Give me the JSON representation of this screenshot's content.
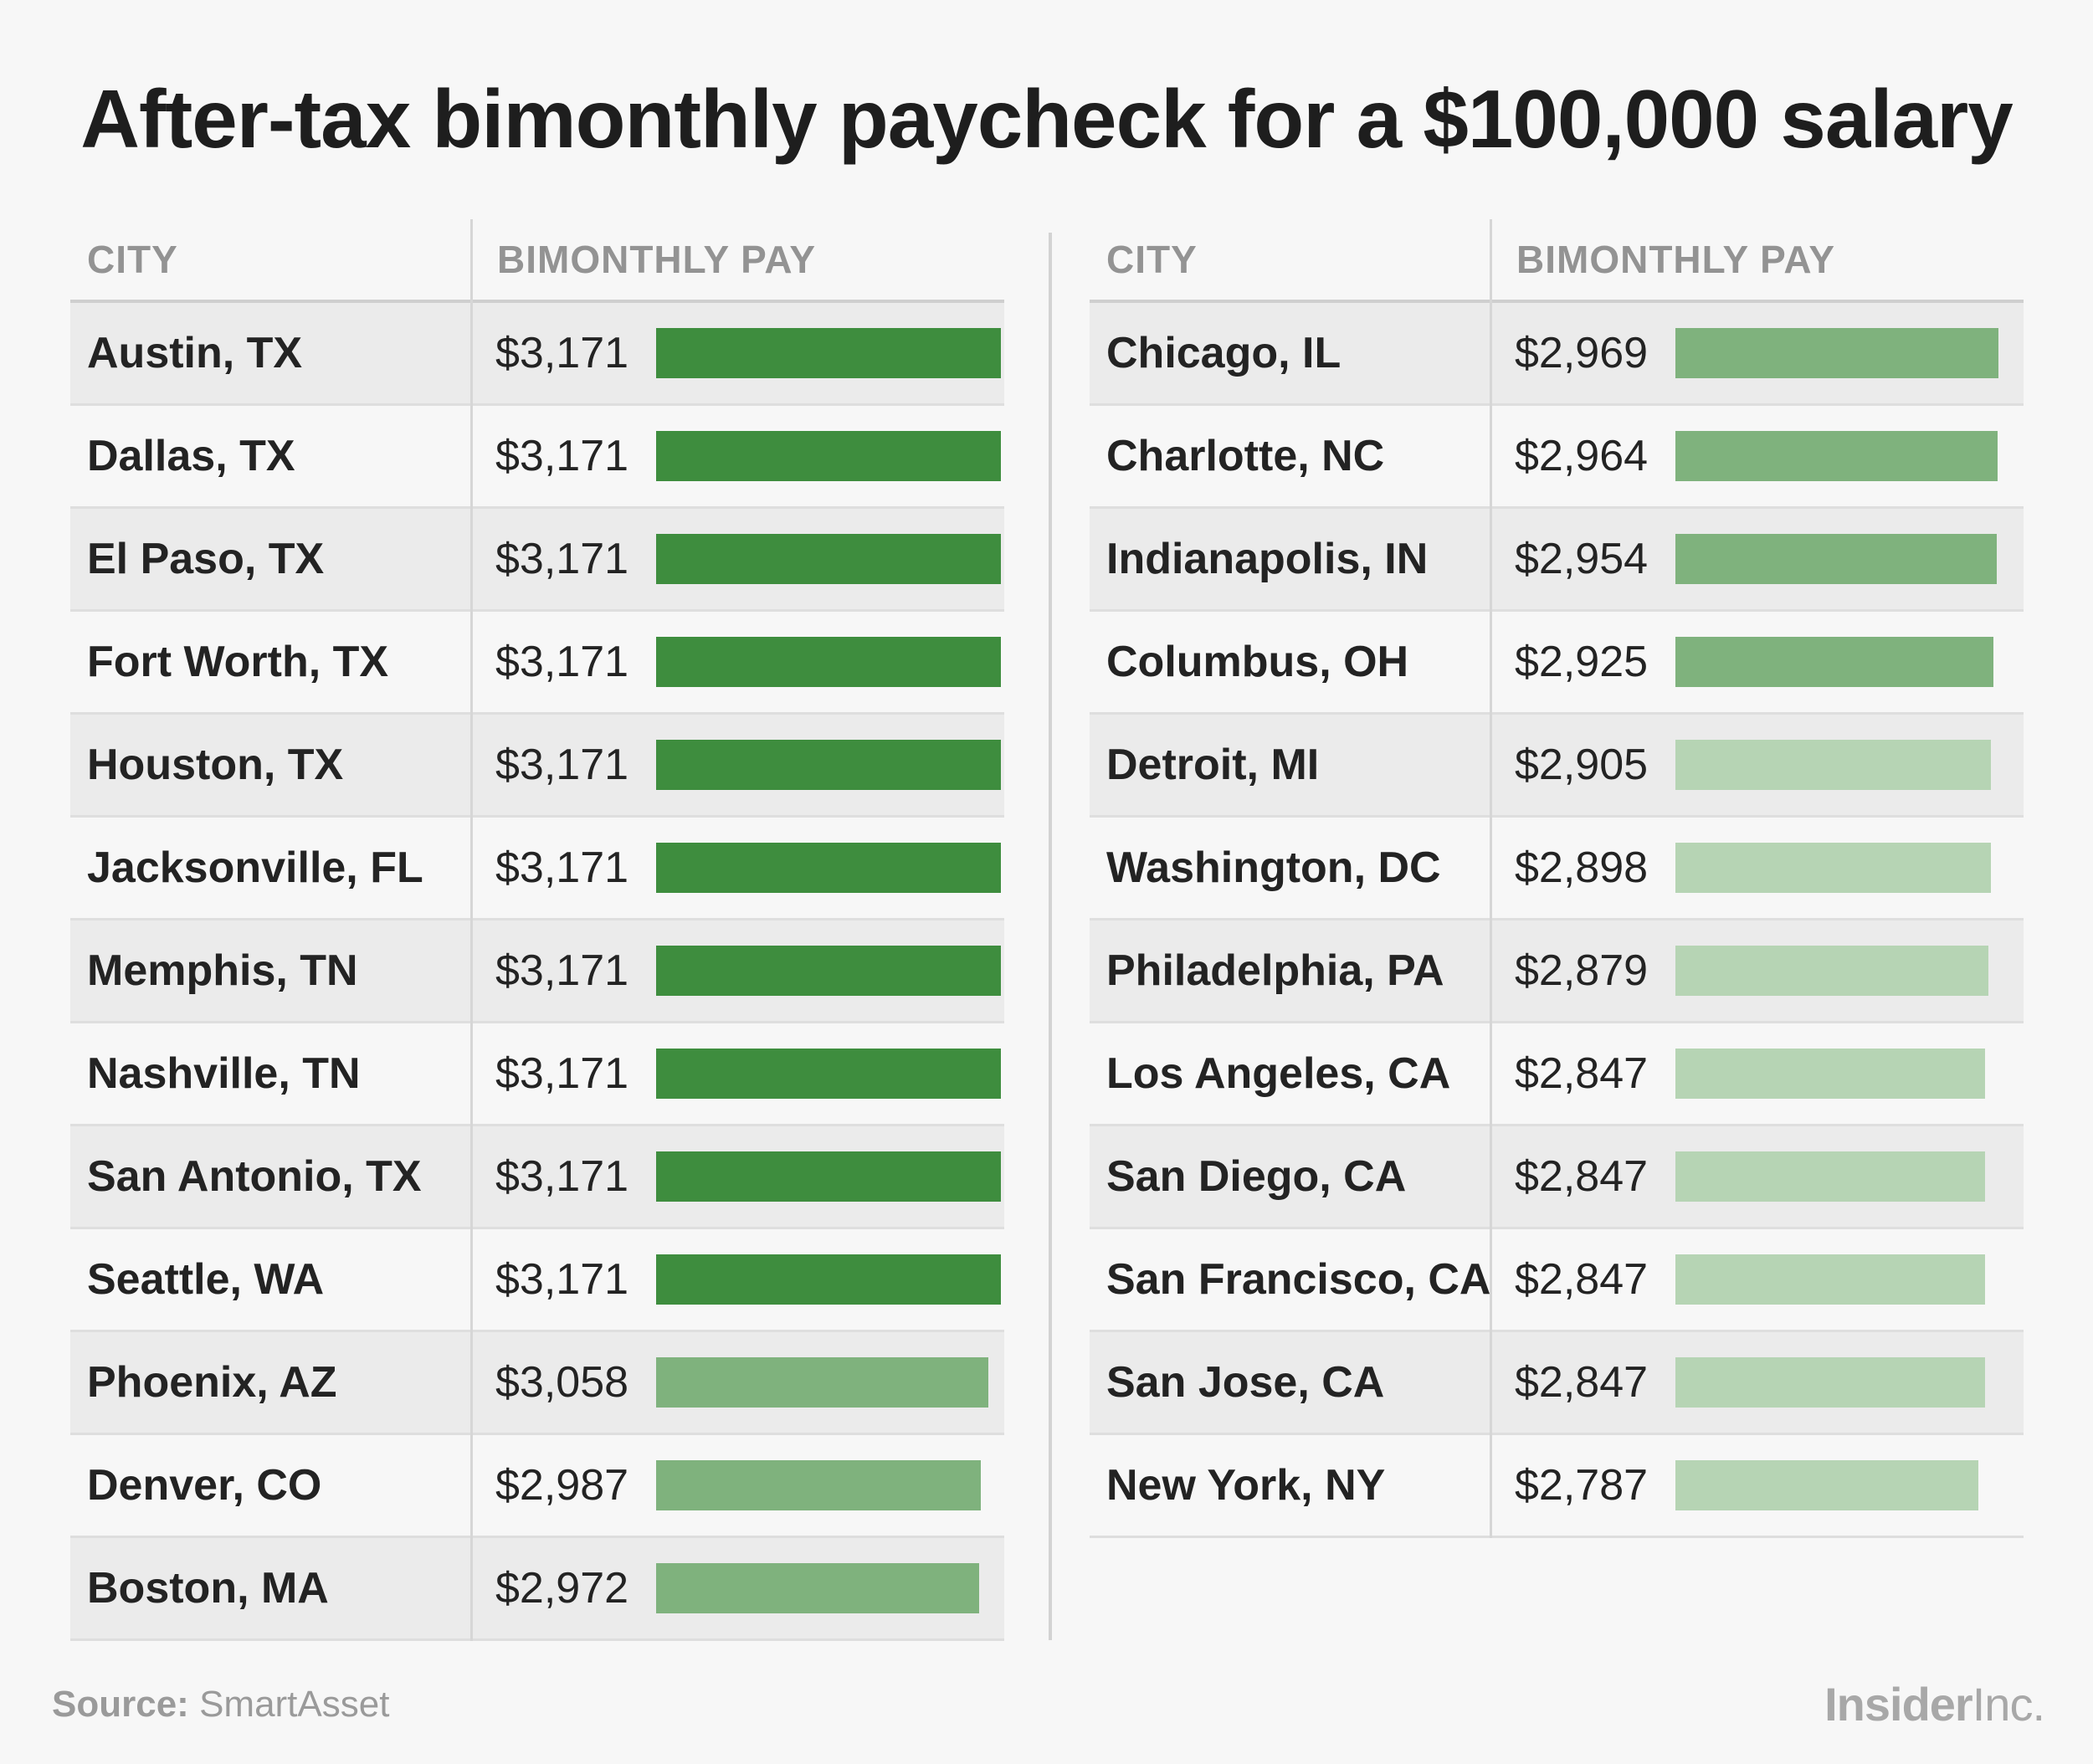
{
  "chart_data": {
    "type": "table",
    "title": "After-tax bimonthly paycheck for a $100,000 salary",
    "columns": [
      "CITY",
      "BIMONTHLY PAY"
    ],
    "max_value": 3171,
    "left_rows": [
      {
        "city": "Austin, TX",
        "pay": "$3,171",
        "value": 3171,
        "tier": "high"
      },
      {
        "city": "Dallas, TX",
        "pay": "$3,171",
        "value": 3171,
        "tier": "high"
      },
      {
        "city": "El Paso, TX",
        "pay": "$3,171",
        "value": 3171,
        "tier": "high"
      },
      {
        "city": "Fort Worth, TX",
        "pay": "$3,171",
        "value": 3171,
        "tier": "high"
      },
      {
        "city": "Houston, TX",
        "pay": "$3,171",
        "value": 3171,
        "tier": "high"
      },
      {
        "city": "Jacksonville, FL",
        "pay": "$3,171",
        "value": 3171,
        "tier": "high"
      },
      {
        "city": "Memphis, TN",
        "pay": "$3,171",
        "value": 3171,
        "tier": "high"
      },
      {
        "city": "Nashville, TN",
        "pay": "$3,171",
        "value": 3171,
        "tier": "high"
      },
      {
        "city": "San Antonio, TX",
        "pay": "$3,171",
        "value": 3171,
        "tier": "high"
      },
      {
        "city": "Seattle, WA",
        "pay": "$3,171",
        "value": 3171,
        "tier": "high"
      },
      {
        "city": "Phoenix, AZ",
        "pay": "$3,058",
        "value": 3058,
        "tier": "mid"
      },
      {
        "city": "Denver, CO",
        "pay": "$2,987",
        "value": 2987,
        "tier": "mid"
      },
      {
        "city": "Boston, MA",
        "pay": "$2,972",
        "value": 2972,
        "tier": "mid"
      }
    ],
    "right_rows": [
      {
        "city": "Chicago, IL",
        "pay": "$2,969",
        "value": 2969,
        "tier": "mid"
      },
      {
        "city": "Charlotte, NC",
        "pay": "$2,964",
        "value": 2964,
        "tier": "mid"
      },
      {
        "city": "Indianapolis, IN",
        "pay": "$2,954",
        "value": 2954,
        "tier": "mid"
      },
      {
        "city": "Columbus, OH",
        "pay": "$2,925",
        "value": 2925,
        "tier": "mid"
      },
      {
        "city": "Detroit, MI",
        "pay": "$2,905",
        "value": 2905,
        "tier": "low"
      },
      {
        "city": "Washington, DC",
        "pay": "$2,898",
        "value": 2898,
        "tier": "low"
      },
      {
        "city": "Philadelphia, PA",
        "pay": "$2,879",
        "value": 2879,
        "tier": "low"
      },
      {
        "city": "Los Angeles, CA",
        "pay": "$2,847",
        "value": 2847,
        "tier": "low"
      },
      {
        "city": "San Diego, CA",
        "pay": "$2,847",
        "value": 2847,
        "tier": "low"
      },
      {
        "city": "San Francisco, CA",
        "pay": "$2,847",
        "value": 2847,
        "tier": "low"
      },
      {
        "city": "San Jose, CA",
        "pay": "$2,847",
        "value": 2847,
        "tier": "low"
      },
      {
        "city": "New York, NY",
        "pay": "$2,787",
        "value": 2787,
        "tier": "low"
      }
    ],
    "colors": {
      "high": "#3e8d3e",
      "mid": "#7fb27d",
      "low": "#b6d4b4"
    }
  },
  "header": {
    "title": "After-tax bimonthly paycheck for a $100,000 salary",
    "col_city": "CITY",
    "col_pay": "BIMONTHLY PAY"
  },
  "footer": {
    "source_label": "Source:",
    "source_name": "SmartAsset",
    "logo_bold": "Insider",
    "logo_light": "Inc."
  }
}
